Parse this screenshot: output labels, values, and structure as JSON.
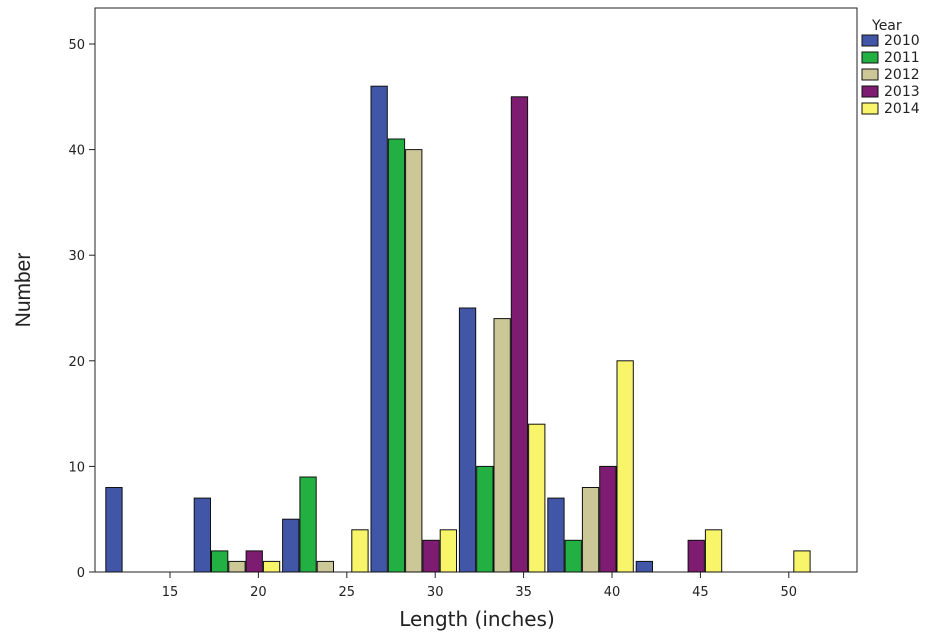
{
  "chart_data": {
    "type": "bar",
    "xlabel": "Length (inches)",
    "ylabel": "Number",
    "ylim": [
      0,
      50
    ],
    "yticks": [
      "0",
      "10",
      "20",
      "30",
      "40",
      "50"
    ],
    "grid": false,
    "legend_position": "top-right",
    "legend_title": "Year",
    "categories": [
      "15",
      "20",
      "25",
      "30",
      "35",
      "40",
      "45",
      "50"
    ],
    "series": [
      {
        "name": "2010",
        "color": "#4256a8",
        "values": [
          8,
          7,
          5,
          46,
          25,
          7,
          1,
          0
        ]
      },
      {
        "name": "2011",
        "color": "#22b043",
        "values": [
          0,
          2,
          9,
          41,
          10,
          3,
          0,
          0
        ]
      },
      {
        "name": "2012",
        "color": "#ccc797",
        "values": [
          0,
          1,
          1,
          40,
          24,
          8,
          0,
          0
        ]
      },
      {
        "name": "2013",
        "color": "#7d1c70",
        "values": [
          0,
          2,
          0,
          3,
          45,
          10,
          3,
          0
        ]
      },
      {
        "name": "2014",
        "color": "#f8f56b",
        "values": [
          0,
          1,
          4,
          4,
          14,
          20,
          4,
          2
        ]
      }
    ]
  }
}
